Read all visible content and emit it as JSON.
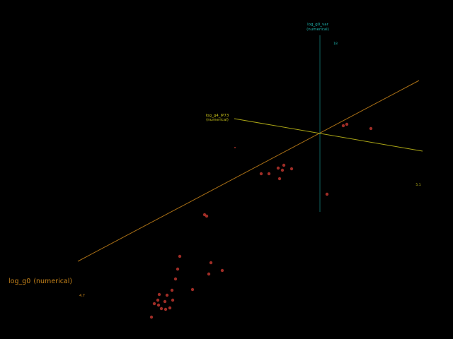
{
  "chart_data": {
    "type": "scatter",
    "dimensions": 3,
    "axes": {
      "x": {
        "name": "log_g0",
        "kind": "(numerical)",
        "tick_min": "4.7",
        "color": "#c8841a"
      },
      "y": {
        "name": "log_g0_var",
        "kind": "(numerical)",
        "tick_max": "18",
        "color": "#1fb5b0"
      },
      "z": {
        "name": "log_g4_IP73",
        "kind": "(numerical)",
        "tick_max": "5.1",
        "color": "#c8c21a"
      }
    },
    "point_color": "#b0322a",
    "points_labels_visible": false
  }
}
